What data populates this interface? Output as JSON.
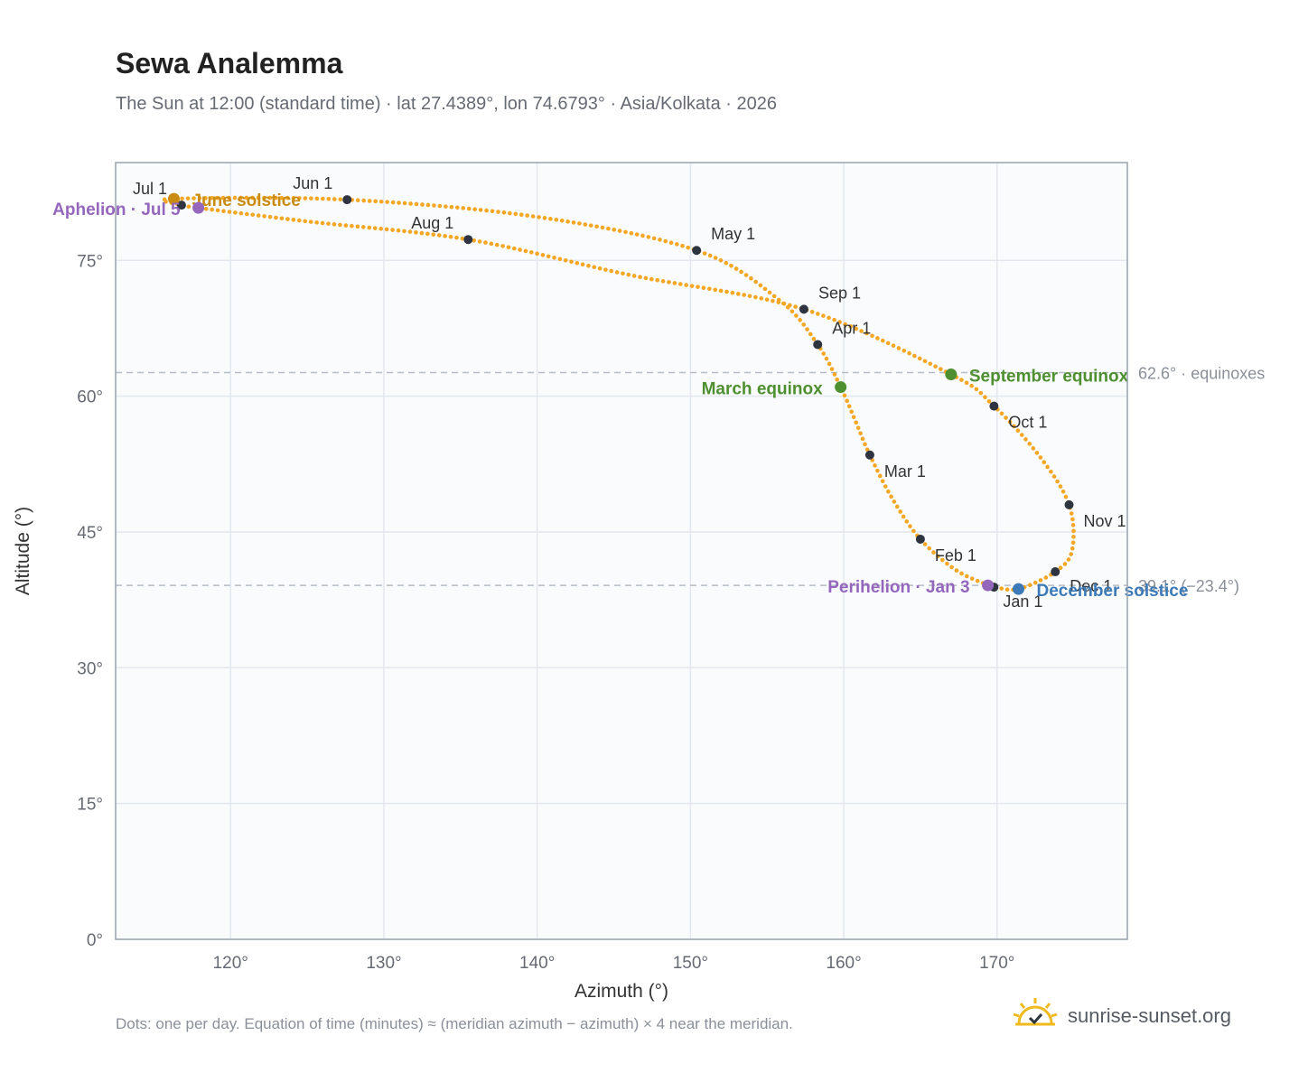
{
  "header": {
    "title": "Sewa Analemma",
    "subtitle": "The Sun at 12:00 (standard time) · lat 27.4389°, lon 74.6793° · Asia/Kolkata · 2026"
  },
  "footer": {
    "note": "Dots: one per day. Equation of time (minutes) ≈ (meridian azimuth − azimuth) × 4 near the meridian.",
    "brand": "sunrise-sunset.org",
    "brand_icon": "sun-logo-icon"
  },
  "colors": {
    "curve": "#f5a623",
    "month_marker": "#2f3540",
    "equinox": "#4e8f2f",
    "june_solstice": "#c98b12",
    "december_solstice": "#3d7ab8",
    "apsis": "#9467bd",
    "plot_bg": "#f9fbfd",
    "grid": "#e3e8ee",
    "frame": "#9aa3ae",
    "reference_line": "#b5bcc6"
  },
  "chart_data": {
    "type": "scatter",
    "xlabel": "Azimuth (°)",
    "ylabel": "Altitude (°)",
    "xlim": [
      112.5,
      178.5
    ],
    "ylim": [
      0,
      85.8
    ],
    "xticks": [
      120,
      130,
      140,
      150,
      160,
      170
    ],
    "yticks": [
      0,
      15,
      30,
      45,
      60,
      75
    ],
    "xtick_labels": [
      "120°",
      "130°",
      "140°",
      "150°",
      "160°",
      "170°"
    ],
    "ytick_labels": [
      "0°",
      "15°",
      "30°",
      "45°",
      "60°",
      "75°"
    ],
    "grid": true,
    "reference_lines": [
      {
        "altitude": 62.6,
        "label": "62.6° · equinoxes"
      },
      {
        "altitude": 39.1,
        "label": "39.1° (−23.4°)"
      }
    ],
    "path_points": [
      {
        "date": "Jan 1",
        "az": 169.8,
        "alt": 38.9
      },
      {
        "date": "Jan 15",
        "az": 167.4,
        "alt": 40.7
      },
      {
        "date": "Feb 1",
        "az": 165.0,
        "alt": 44.2
      },
      {
        "date": "Feb 15",
        "az": 163.2,
        "alt": 48.6
      },
      {
        "date": "Mar 1",
        "az": 161.7,
        "alt": 53.5
      },
      {
        "date": "Mar 10",
        "az": 160.8,
        "alt": 57.1
      },
      {
        "date": "Mar 20",
        "az": 159.8,
        "alt": 61.0
      },
      {
        "date": "Apr 1",
        "az": 158.3,
        "alt": 65.7
      },
      {
        "date": "Apr 15",
        "az": 155.8,
        "alt": 70.6
      },
      {
        "date": "May 1",
        "az": 150.4,
        "alt": 76.1
      },
      {
        "date": "May 15",
        "az": 140.0,
        "alt": 79.8
      },
      {
        "date": "Jun 1",
        "az": 127.6,
        "alt": 81.7
      },
      {
        "date": "Jun 21",
        "az": 116.3,
        "alt": 81.8
      },
      {
        "date": "Jul 1",
        "az": 116.8,
        "alt": 81.1
      },
      {
        "date": "Jul 5",
        "az": 117.9,
        "alt": 80.8
      },
      {
        "date": "Jul 15",
        "az": 125.0,
        "alt": 79.3
      },
      {
        "date": "Aug 1",
        "az": 135.5,
        "alt": 77.3
      },
      {
        "date": "Aug 15",
        "az": 146.0,
        "alt": 73.4
      },
      {
        "date": "Sep 1",
        "az": 157.4,
        "alt": 69.6
      },
      {
        "date": "Sep 23",
        "az": 167.0,
        "alt": 62.4
      },
      {
        "date": "Oct 1",
        "az": 169.8,
        "alt": 58.9
      },
      {
        "date": "Oct 15",
        "az": 172.8,
        "alt": 53.3
      },
      {
        "date": "Nov 1",
        "az": 174.7,
        "alt": 48.0
      },
      {
        "date": "Nov 15",
        "az": 174.9,
        "alt": 43.0
      },
      {
        "date": "Dec 1",
        "az": 173.8,
        "alt": 40.6
      },
      {
        "date": "Dec 21",
        "az": 171.4,
        "alt": 38.7
      },
      {
        "date": "Dec 31",
        "az": 169.9,
        "alt": 38.9
      }
    ],
    "month_markers": [
      {
        "label": "Jan 1",
        "az": 169.8,
        "alt": 38.9
      },
      {
        "label": "Feb 1",
        "az": 165.0,
        "alt": 44.2
      },
      {
        "label": "Mar 1",
        "az": 161.7,
        "alt": 53.5
      },
      {
        "label": "Apr 1",
        "az": 158.3,
        "alt": 65.7
      },
      {
        "label": "May 1",
        "az": 150.4,
        "alt": 76.1
      },
      {
        "label": "Jun 1",
        "az": 127.6,
        "alt": 81.7
      },
      {
        "label": "Jul 1",
        "az": 116.8,
        "alt": 81.1
      },
      {
        "label": "Aug 1",
        "az": 135.5,
        "alt": 77.3
      },
      {
        "label": "Sep 1",
        "az": 157.4,
        "alt": 69.6
      },
      {
        "label": "Oct 1",
        "az": 169.8,
        "alt": 58.9
      },
      {
        "label": "Nov 1",
        "az": 174.7,
        "alt": 48.0
      },
      {
        "label": "Dec 1",
        "az": 173.8,
        "alt": 40.6
      }
    ],
    "events": [
      {
        "label": "March equinox",
        "az": 159.8,
        "alt": 61.0,
        "kind": "equinox"
      },
      {
        "label": "September equinox",
        "az": 167.0,
        "alt": 62.4,
        "kind": "equinox"
      },
      {
        "label": "June solstice",
        "az": 116.3,
        "alt": 81.8,
        "kind": "june_solstice"
      },
      {
        "label": "December solstice",
        "az": 171.4,
        "alt": 38.7,
        "kind": "december_solstice"
      },
      {
        "label": "Aphelion · Jul 5",
        "az": 117.9,
        "alt": 80.8,
        "kind": "apsis"
      },
      {
        "label": "Perihelion · Jan 3",
        "az": 169.4,
        "alt": 39.1,
        "kind": "apsis"
      }
    ]
  }
}
